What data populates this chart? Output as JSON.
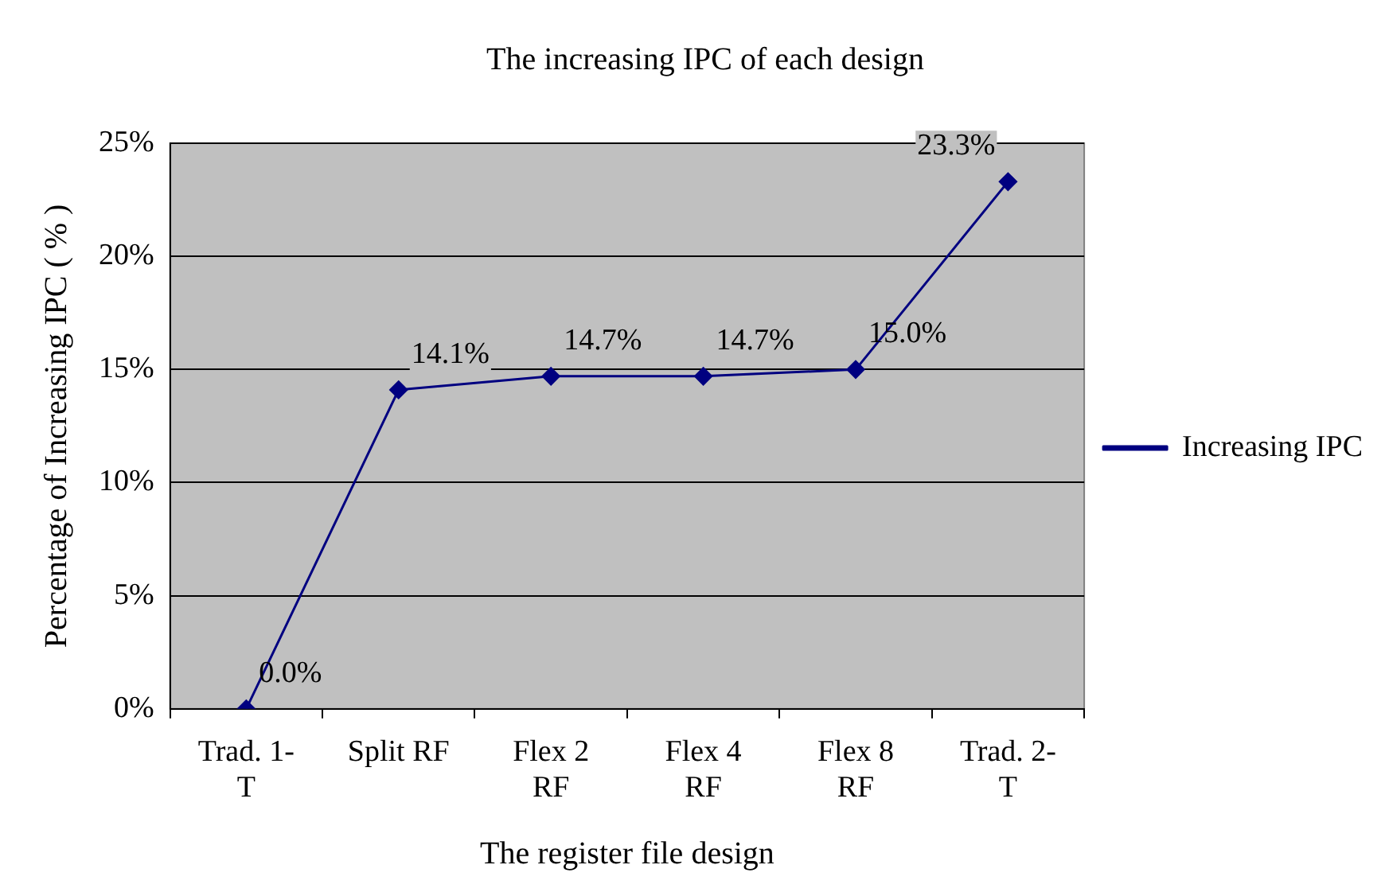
{
  "chart_data": {
    "type": "line",
    "title": "The increasing IPC of each design",
    "xlabel": "The register file design",
    "ylabel": "Percentage of Increasing IPC ( % )",
    "categories": [
      "Trad. 1-T",
      "Split RF",
      "Flex 2 RF",
      "Flex 4 RF",
      "Flex 8 RF",
      "Trad. 2-T"
    ],
    "series": [
      {
        "name": "Increasing IPC",
        "color": "#000080",
        "values": [
          0,
          14.1,
          14.7,
          14.7,
          15.0,
          23.3
        ],
        "value_labels": [
          "0.0%",
          "14.1%",
          "14.7%",
          "14.7%",
          "15.0%",
          "23.3%"
        ]
      }
    ],
    "ylim": [
      0,
      25
    ],
    "yticks": [
      {
        "value": 0,
        "label": "0%"
      },
      {
        "value": 5,
        "label": "5%"
      },
      {
        "value": 10,
        "label": "10%"
      },
      {
        "value": 15,
        "label": "15%"
      },
      {
        "value": 20,
        "label": "20%"
      },
      {
        "value": 25,
        "label": "25%"
      }
    ],
    "grid": "y",
    "legend": "right",
    "marker": "diamond",
    "line_style": "solid"
  }
}
